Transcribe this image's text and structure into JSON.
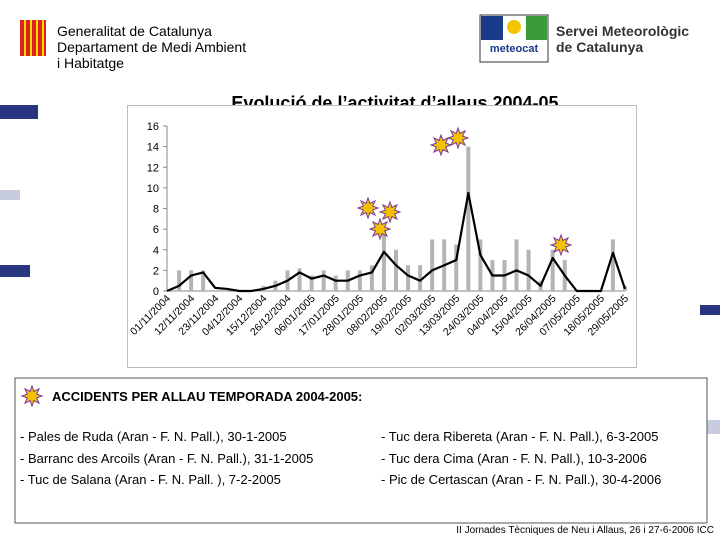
{
  "header": {
    "org_lines": [
      "Generalitat de Catalunya",
      "Departament de Medi Ambient",
      "i Habitatge"
    ],
    "logo_text": "meteocat",
    "right_lines": [
      "Servei Meteorològic",
      "de Catalunya"
    ]
  },
  "chart_data": {
    "type": "bar",
    "title": "Evolució de l’activitat d’allaus 2004-05",
    "categories": [
      "01/11/2004",
      null,
      "12/11/2004",
      null,
      "23/11/2004",
      null,
      "04/12/2004",
      null,
      "15/12/2004",
      null,
      "26/12/2004",
      null,
      "06/01/2005",
      null,
      "17/01/2005",
      null,
      "28/01/2005",
      null,
      "08/02/2005",
      null,
      "19/02/2005",
      null,
      "02/03/2005",
      null,
      "13/03/2005",
      null,
      "24/03/2005",
      null,
      "04/04/2005",
      null,
      "15/04/2005",
      null,
      "26/04/2005",
      null,
      "07/05/2005",
      null,
      "18/05/2005",
      null,
      "29/05/2005"
    ],
    "series": [
      {
        "type": "bar",
        "color": "#b4b4b4",
        "values": [
          0,
          2,
          2,
          2,
          0,
          0,
          0,
          0,
          0.5,
          1,
          2,
          2.2,
          1.5,
          2,
          1.5,
          2,
          2,
          2.5,
          6,
          4,
          2.5,
          2.5,
          5,
          5,
          4.5,
          14,
          5,
          3,
          3,
          5,
          4,
          1,
          4,
          3,
          0,
          0,
          0,
          5,
          0.5
        ]
      },
      {
        "type": "line",
        "color": "#000000",
        "values": [
          0,
          0.5,
          1.5,
          1.8,
          0.3,
          0.2,
          0,
          0,
          0.2,
          0.5,
          1,
          1.8,
          1.2,
          1.5,
          1,
          1,
          1.5,
          1.8,
          3.8,
          2.5,
          1.5,
          1,
          2,
          2.5,
          3,
          9.5,
          3.5,
          1.5,
          1.5,
          2,
          1.5,
          0.5,
          3.2,
          1.5,
          0,
          0,
          0,
          3.7,
          0.2
        ]
      }
    ],
    "ylim": [
      0,
      16
    ],
    "yticks": [
      0,
      2,
      4,
      6,
      8,
      10,
      12,
      14,
      16
    ],
    "grid": false
  },
  "accidents": {
    "heading": "ACCIDENTS PER ALLAU TEMPORADA 2004-2005:",
    "left": [
      "- Pales de Ruda (Aran - F. N. Pall.), 30-1-2005",
      "- Barranc des Arcoils (Aran - F. N. Pall.), 31-1-2005",
      "- Tuc de Salana (Aran - F. N. Pall. ), 7-2-2005"
    ],
    "right": [
      "- Tuc dera Ribereta (Aran - F. N. Pall.), 6-3-2005",
      "- Tuc dera Cima (Aran - F. N. Pall.), 10-3-2006",
      "- Pic de Certascan (Aran - F. N. Pall.), 30-4-2006"
    ]
  },
  "footer": "II Jornades Tècniques de Neu i Allaus, 26 i 27-6-2006 ICC"
}
